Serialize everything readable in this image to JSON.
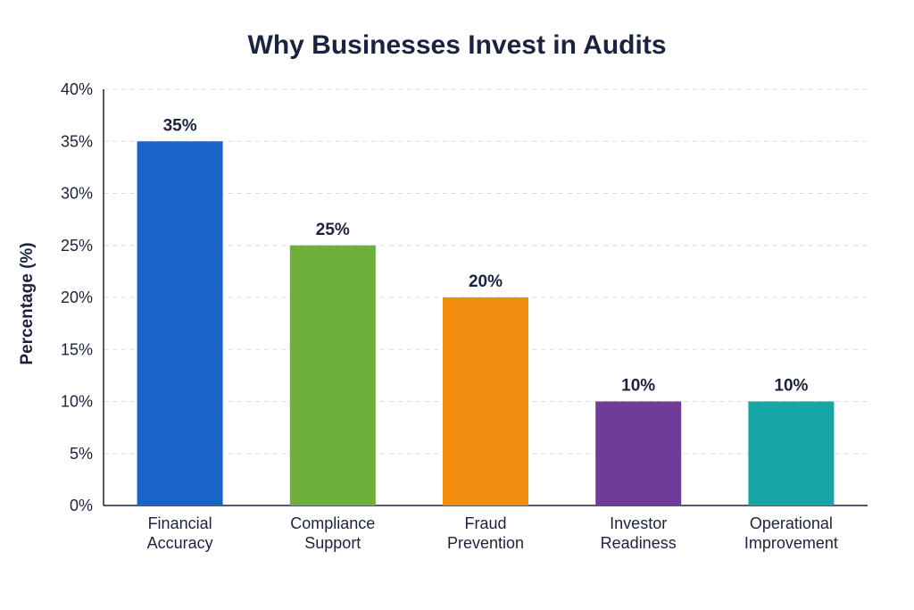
{
  "chart_data": {
    "type": "bar",
    "title": "Why Businesses Invest in Audits",
    "ylabel": "Percentage (%)",
    "xlabel": "",
    "ylim": [
      0,
      40
    ],
    "yticks": [
      0,
      5,
      10,
      15,
      20,
      25,
      30,
      35,
      40
    ],
    "ytick_suffix": "%",
    "grid": true,
    "categories": [
      [
        "Financial",
        "Accuracy"
      ],
      [
        "Compliance",
        "Support"
      ],
      [
        "Fraud",
        "Prevention"
      ],
      [
        "Investor",
        "Readiness"
      ],
      [
        "Operational",
        "Improvement"
      ]
    ],
    "values": [
      35,
      25,
      20,
      10,
      10
    ],
    "data_labels": [
      "35%",
      "25%",
      "20%",
      "10%",
      "10%"
    ],
    "colors": [
      "#1a63c9",
      "#6eb03a",
      "#f28c0f",
      "#6f3d99",
      "#16a6a5"
    ]
  }
}
